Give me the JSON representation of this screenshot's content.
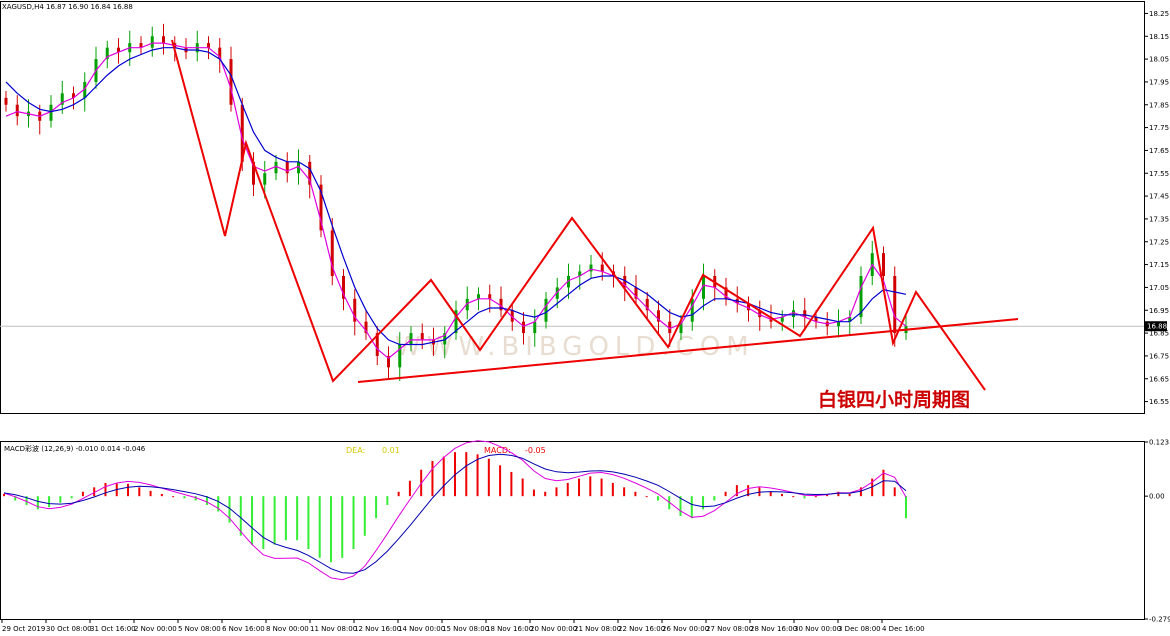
{
  "header": {
    "symbol_info": "XAGUSD,H4  16.87 16.90 16.84 16.88",
    "macd_info": "MACD彩波 (12,26,9) -0.010 0.014 -0.046",
    "dea_label": "DEA:",
    "dea_value": "0.01",
    "macd_label": "MACD:",
    "macd_value": "-0.05"
  },
  "annotation": "白银四小时周期图",
  "watermark": "WWW.BIBGOLD.COM",
  "current_price_label": "16.88",
  "colors": {
    "bull": "#00a000",
    "bear": "#d00000",
    "ma_fast": "#e000e0",
    "ma_slow": "#0000d0",
    "pattern": "#ee0000",
    "hist_pos": "#ee0000",
    "hist_neg": "#33ee33",
    "price_line": "#c0c0c0",
    "label_box": "#000000"
  },
  "chart_data": [
    {
      "type": "candlestick",
      "title": "XAGUSD,H4",
      "ylim": [
        16.5,
        18.3
      ],
      "yticks": [
        "18.25",
        "18.15",
        "18.05",
        "17.95",
        "17.85",
        "17.75",
        "17.65",
        "17.55",
        "17.45",
        "17.35",
        "17.25",
        "17.15",
        "17.05",
        "16.95",
        "16.85",
        "16.75",
        "16.65",
        "16.55"
      ],
      "xticks": [
        "29 Oct 2019",
        "30 Oct 08:00",
        "31 Oct 16:00",
        "2 Nov 00:00",
        "5 Nov 08:00",
        "6 Nov 16:00",
        "8 Nov 00:00",
        "11 Nov 08:00",
        "12 Nov 16:00",
        "14 Nov 00:00",
        "15 Nov 08:00",
        "18 Nov 16:00",
        "20 Nov 00:00",
        "21 Nov 08:00",
        "22 Nov 16:00",
        "26 Nov 00:00",
        "27 Nov 08:00",
        "28 Nov 16:00",
        "30 Nov 00:00",
        "3 Dec 08:00",
        "4 Dec 16:00"
      ],
      "last_price": 16.88,
      "series": [
        {
          "name": "close",
          "kind": "candles",
          "values": [
            17.85,
            17.8,
            17.82,
            17.78,
            17.85,
            17.9,
            17.88,
            17.95,
            18.05,
            18.1,
            18.08,
            18.12,
            18.1,
            18.15,
            18.12,
            18.1,
            18.08,
            18.12,
            18.1,
            18.05,
            17.85,
            17.6,
            17.5,
            17.55,
            17.6,
            17.55,
            17.6,
            17.5,
            17.3,
            17.1,
            17.0,
            16.9,
            16.85,
            16.75,
            16.7,
            16.8,
            16.85,
            16.82,
            16.8,
            16.85,
            16.95,
            17.0,
            17.02,
            17.0,
            16.95,
            16.9,
            16.85,
            16.9,
            17.0,
            17.05,
            17.1,
            17.12,
            17.15,
            17.12,
            17.1,
            17.05,
            17.0,
            16.95,
            16.9,
            16.85,
            16.9,
            17.0,
            17.1,
            17.05,
            17.0,
            16.98,
            16.95,
            16.92,
            16.9,
            16.92,
            16.95,
            16.92,
            16.9,
            16.88,
            16.9,
            16.92,
            17.1,
            17.2,
            17.1,
            16.85,
            16.88
          ]
        },
        {
          "name": "fast MA",
          "kind": "line",
          "values": [
            17.8,
            17.82,
            17.81,
            17.8,
            17.82,
            17.86,
            17.88,
            17.92,
            18.0,
            18.06,
            18.08,
            18.1,
            18.1,
            18.12,
            18.12,
            18.11,
            18.1,
            18.1,
            18.1,
            18.06,
            17.92,
            17.7,
            17.58,
            17.56,
            17.58,
            17.56,
            17.58,
            17.52,
            17.34,
            17.14,
            17.02,
            16.92,
            16.86,
            16.78,
            16.74,
            16.78,
            16.82,
            16.82,
            16.82,
            16.84,
            16.92,
            16.98,
            17.0,
            17.0,
            16.97,
            16.92,
            16.88,
            16.9,
            16.97,
            17.03,
            17.08,
            17.1,
            17.13,
            17.12,
            17.1,
            17.06,
            17.01,
            16.96,
            16.91,
            16.87,
            16.89,
            16.97,
            17.06,
            17.05,
            17.01,
            16.98,
            16.96,
            16.93,
            16.91,
            16.92,
            16.94,
            16.92,
            16.9,
            16.89,
            16.9,
            16.92,
            17.05,
            17.15,
            17.08,
            16.92,
            16.88
          ]
        },
        {
          "name": "slow MA",
          "kind": "line",
          "values": [
            17.95,
            17.9,
            17.86,
            17.83,
            17.82,
            17.83,
            17.85,
            17.88,
            17.93,
            17.98,
            18.02,
            18.05,
            18.07,
            18.09,
            18.1,
            18.1,
            18.09,
            18.09,
            18.08,
            18.05,
            17.98,
            17.85,
            17.73,
            17.65,
            17.62,
            17.6,
            17.6,
            17.57,
            17.47,
            17.32,
            17.18,
            17.05,
            16.95,
            16.87,
            16.82,
            16.8,
            16.8,
            16.8,
            16.81,
            16.82,
            16.86,
            16.9,
            16.94,
            16.96,
            16.96,
            16.95,
            16.93,
            16.92,
            16.94,
            16.98,
            17.02,
            17.06,
            17.09,
            17.1,
            17.1,
            17.08,
            17.05,
            17.02,
            16.98,
            16.94,
            16.92,
            16.93,
            16.97,
            17.0,
            17.0,
            16.99,
            16.98,
            16.96,
            16.94,
            16.93,
            16.93,
            16.93,
            16.92,
            16.91,
            16.9,
            16.9,
            16.94,
            17.0,
            17.04,
            17.03,
            17.02
          ]
        }
      ]
    },
    {
      "type": "bar",
      "title": "MACD彩波 (12,26,9)",
      "ylim": [
        -0.279,
        0.123
      ],
      "yticks": [
        "0.123",
        "0.00",
        "-0.279"
      ],
      "series": [
        {
          "name": "MACD",
          "values": [
            0.005,
            -0.01,
            -0.02,
            -0.03,
            -0.025,
            -0.015,
            -0.005,
            0.01,
            0.02,
            0.03,
            0.03,
            0.028,
            0.02,
            0.012,
            0.005,
            0.0,
            -0.005,
            -0.01,
            -0.02,
            -0.035,
            -0.06,
            -0.09,
            -0.11,
            -0.12,
            -0.11,
            -0.1,
            -0.1,
            -0.12,
            -0.14,
            -0.15,
            -0.14,
            -0.12,
            -0.09,
            -0.05,
            -0.02,
            0.01,
            0.035,
            0.06,
            0.08,
            0.09,
            0.1,
            0.1,
            0.095,
            0.085,
            0.07,
            0.055,
            0.04,
            0.015,
            0.01,
            0.02,
            0.03,
            0.04,
            0.045,
            0.04,
            0.03,
            0.02,
            0.01,
            0.0,
            -0.01,
            -0.03,
            -0.045,
            -0.05,
            -0.03,
            -0.01,
            0.01,
            0.025,
            0.025,
            0.02,
            0.01,
            0.005,
            0.0,
            -0.005,
            0.0,
            0.005,
            0.01,
            0.005,
            0.02,
            0.04,
            0.06,
            0.02,
            -0.05
          ]
        }
      ]
    }
  ]
}
